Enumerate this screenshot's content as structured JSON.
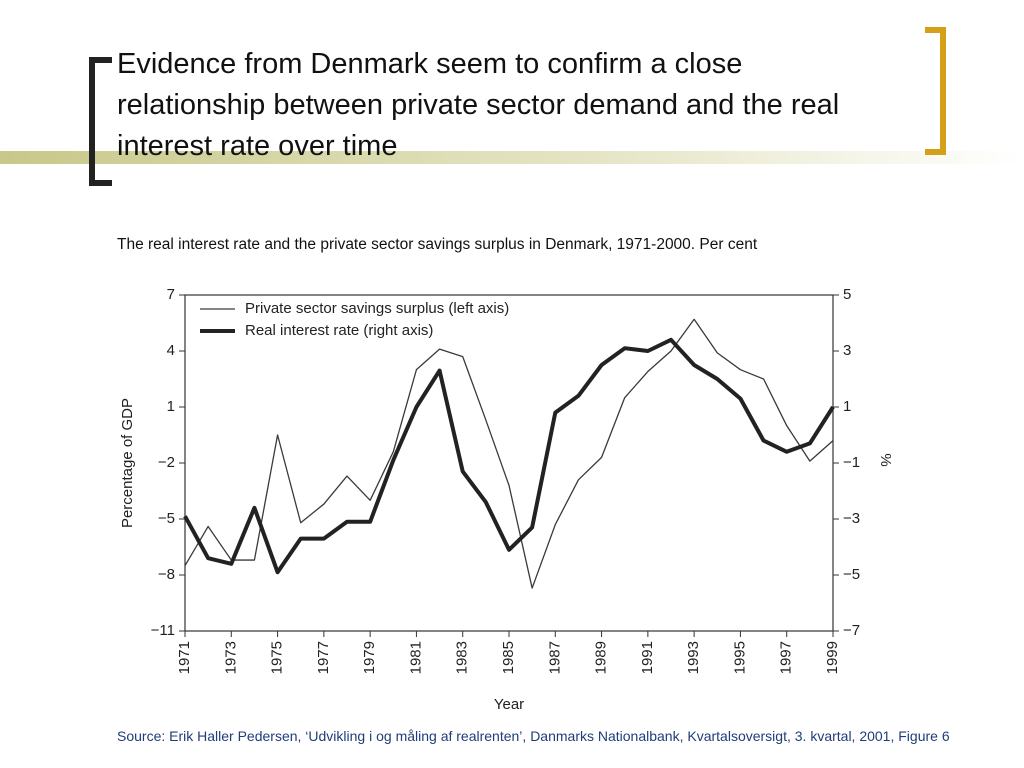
{
  "slide": {
    "title": "Evidence from Denmark seem to confirm a close relationship between private sector demand and the real interest rate over time",
    "caption": "The real interest rate and the private sector savings surplus in Denmark, 1971-2000. Per cent",
    "source": "Source: Erik Haller Pedersen, ‘Udvikling i og måling af realrenten’, Danmarks Nationalbank, Kvartalsoversigt, 3. kvartal, 2001, Figure 6"
  },
  "chart_data": {
    "type": "line",
    "x_label": "Year",
    "y_label": "Percentage of GDP",
    "y2_label": "%",
    "x": [
      1971,
      1972,
      1973,
      1974,
      1975,
      1976,
      1977,
      1978,
      1979,
      1980,
      1981,
      1982,
      1983,
      1984,
      1985,
      1986,
      1987,
      1988,
      1989,
      1990,
      1991,
      1992,
      1993,
      1994,
      1995,
      1996,
      1997,
      1998,
      1999
    ],
    "xlim": [
      1971,
      1999
    ],
    "xticks": [
      1971,
      1973,
      1975,
      1977,
      1979,
      1981,
      1983,
      1985,
      1987,
      1989,
      1991,
      1993,
      1995,
      1997,
      1999
    ],
    "ylim": [
      -11,
      7
    ],
    "yticks": [
      {
        "value": -11,
        "label": "−11"
      },
      {
        "value": -8,
        "label": "−8"
      },
      {
        "value": -5,
        "label": "−5"
      },
      {
        "value": -2,
        "label": "−2"
      },
      1,
      4,
      7
    ],
    "y2lim": [
      -7,
      5
    ],
    "y2ticks": [
      {
        "value": -7,
        "label": "−7"
      },
      {
        "value": -5,
        "label": "−5"
      },
      {
        "value": -3,
        "label": "−3"
      },
      {
        "value": -1,
        "label": "−1"
      },
      1,
      3,
      5
    ],
    "legend": "upper left",
    "series": [
      {
        "name": "Private sector savings surplus (left axis)",
        "color": "#3a3a3a",
        "line_width": 1.3,
        "values": [
          -7.5,
          -5.4,
          -7.2,
          -7.2,
          -0.5,
          -5.2,
          -4.2,
          -2.7,
          -4.0,
          -1.4,
          3.0,
          4.1,
          3.7,
          0.3,
          -3.2,
          -8.7,
          -5.3,
          -2.9,
          -1.7,
          1.5,
          2.9,
          4.0,
          5.7,
          3.9,
          3.0,
          2.5,
          0.0,
          -1.9,
          -0.8
        ]
      },
      {
        "name": "Real interest rate (right axis)",
        "color": "#222222",
        "line_width": 4,
        "axis": "y2",
        "values": [
          -2.9,
          -4.4,
          -4.6,
          -2.6,
          -4.9,
          -3.7,
          -3.7,
          -3.1,
          -3.1,
          -0.9,
          1.0,
          2.3,
          -1.3,
          -2.4,
          -4.1,
          -3.3,
          0.8,
          1.4,
          2.5,
          3.1,
          3.0,
          3.4,
          2.5,
          2.0,
          1.3,
          -0.2,
          -0.6,
          -0.3,
          1.0
        ]
      }
    ]
  }
}
